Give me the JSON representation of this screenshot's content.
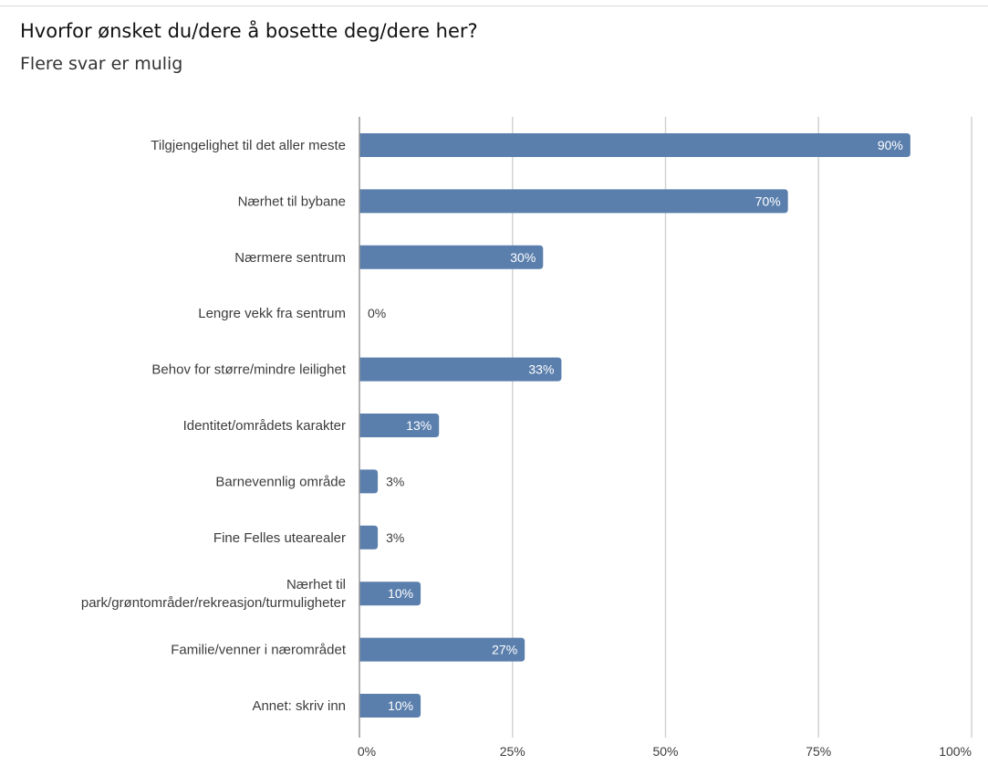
{
  "header": {
    "title": "Hvorfor ønsket du/dere å bosette deg/dere her?",
    "subtitle": "Flere svar er mulig"
  },
  "chart_data": {
    "type": "bar",
    "orientation": "horizontal",
    "categories": [
      "Tilgjengelighet til det aller meste",
      "Nærhet til bybane",
      "Nærmere sentrum",
      "Lengre vekk fra sentrum",
      "Behov for større/mindre leilighet",
      "Identitet/områdets karakter",
      "Barnevennlig område",
      "Fine Felles utearealer",
      "Nærhet til park/grøntområder/rekreasjon/turmuligheter",
      "Familie/venner i nærområdet",
      "Annet: skriv inn"
    ],
    "category_lines": [
      [
        "Tilgjengelighet til det aller meste"
      ],
      [
        "Nærhet til bybane"
      ],
      [
        "Nærmere sentrum"
      ],
      [
        "Lengre vekk fra sentrum"
      ],
      [
        "Behov for større/mindre leilighet"
      ],
      [
        "Identitet/områdets karakter"
      ],
      [
        "Barnevennlig område"
      ],
      [
        "Fine Felles utearealer"
      ],
      [
        "Nærhet til",
        "park/grøntområder/rekreasjon/turmuligheter"
      ],
      [
        "Familie/venner i nærområdet"
      ],
      [
        "Annet: skriv inn"
      ]
    ],
    "values": [
      90,
      70,
      30,
      0,
      33,
      13,
      3,
      3,
      10,
      27,
      10
    ],
    "value_labels": [
      "90%",
      "70%",
      "30%",
      "0%",
      "33%",
      "13%",
      "3%",
      "3%",
      "10%",
      "27%",
      "10%"
    ],
    "x_ticks": [
      0,
      25,
      50,
      75,
      100
    ],
    "x_tick_labels": [
      "0%",
      "25%",
      "50%",
      "75%",
      "100%"
    ],
    "xlim": [
      0,
      100
    ],
    "grid": true,
    "colors": {
      "bar": "#5b7fad",
      "grid": "#d3d3d3",
      "axis": "#999999",
      "text": "#3c3c3c",
      "inside_label": "#ffffff"
    }
  }
}
